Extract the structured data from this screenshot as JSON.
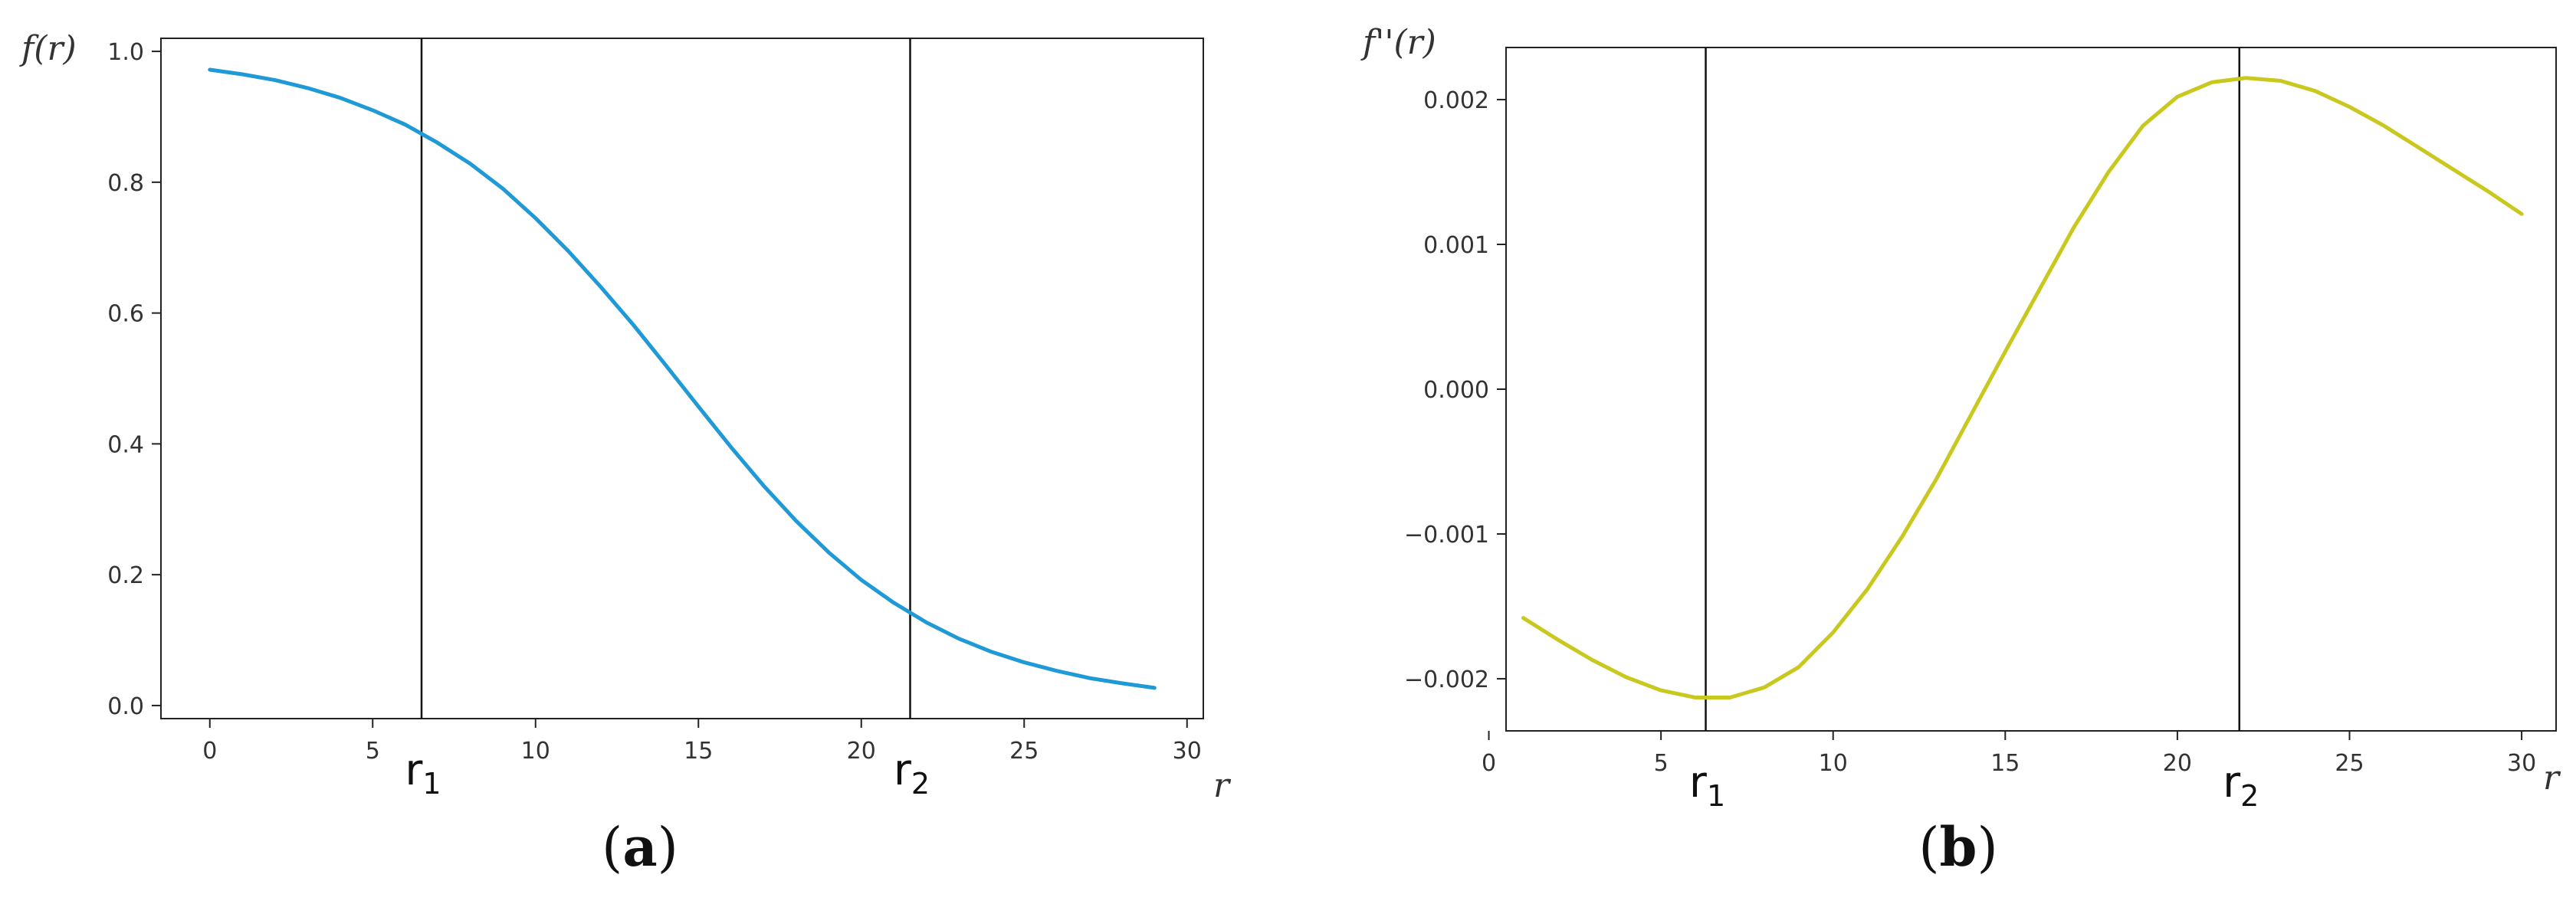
{
  "chart_data": [
    {
      "type": "line",
      "panel": "a",
      "xlabel": "r",
      "ylabel": "f(r)",
      "xlim": [
        -1.5,
        30.5
      ],
      "ylim": [
        -0.02,
        1.02
      ],
      "xticks": [
        0,
        5,
        10,
        15,
        20,
        25,
        30
      ],
      "yticks": [
        0.0,
        0.2,
        0.4,
        0.6,
        0.8,
        1.0
      ],
      "ytick_labels": [
        "0.0",
        "0.2",
        "0.4",
        "0.6",
        "0.8",
        "1.0"
      ],
      "grid": false,
      "series": [
        {
          "color": "#1f9ad6",
          "x": [
            0,
            1,
            2,
            3,
            4,
            5,
            6,
            7,
            8,
            9,
            10,
            11,
            12,
            13,
            14,
            15,
            16,
            17,
            18,
            19,
            20,
            21,
            22,
            23,
            24,
            25,
            26,
            27,
            28,
            29
          ],
          "y": [
            0.972,
            0.965,
            0.956,
            0.944,
            0.929,
            0.91,
            0.888,
            0.86,
            0.828,
            0.79,
            0.745,
            0.695,
            0.64,
            0.582,
            0.52,
            0.457,
            0.395,
            0.336,
            0.282,
            0.234,
            0.192,
            0.157,
            0.127,
            0.102,
            0.082,
            0.066,
            0.053,
            0.042,
            0.034,
            0.027
          ]
        }
      ],
      "vlines": [
        {
          "x": 6.5,
          "label": "r",
          "sub": "1"
        },
        {
          "x": 21.5,
          "label": "r",
          "sub": "2"
        }
      ],
      "panel_label": {
        "open": "(",
        "letter": "a",
        "close": ")"
      }
    },
    {
      "type": "line",
      "panel": "b",
      "xlabel": "r",
      "ylabel": "f''(r)",
      "xlim": [
        0.5,
        31.0
      ],
      "ylim": [
        -0.00236,
        0.00236
      ],
      "xticks": [
        0,
        5,
        10,
        15,
        20,
        25,
        30
      ],
      "yticks": [
        -0.002,
        -0.001,
        0.0,
        0.001,
        0.002
      ],
      "ytick_labels": [
        "−0.002",
        "−0.001",
        "0.000",
        "0.001",
        "0.002"
      ],
      "grid": false,
      "series": [
        {
          "color": "#c8c81e",
          "x": [
            1,
            2,
            3,
            4,
            5,
            6,
            7,
            8,
            9,
            10,
            11,
            12,
            13,
            14,
            15,
            16,
            17,
            18,
            19,
            20,
            21,
            22,
            23,
            24,
            25,
            26,
            27,
            28,
            29,
            30
          ],
          "y": [
            -0.00158,
            -0.00173,
            -0.00187,
            -0.00199,
            -0.00208,
            -0.00213,
            -0.00213,
            -0.00206,
            -0.00192,
            -0.00168,
            -0.00138,
            -0.00102,
            -0.00062,
            -0.00018,
            0.00026,
            0.00069,
            0.00112,
            0.0015,
            0.00182,
            0.00202,
            0.00212,
            0.00215,
            0.00213,
            0.00206,
            0.00195,
            0.00182,
            0.00167,
            0.00152,
            0.00137,
            0.00121
          ]
        }
      ],
      "vlines": [
        {
          "x": 6.3,
          "label": "r",
          "sub": "1"
        },
        {
          "x": 21.8,
          "label": "r",
          "sub": "2"
        }
      ],
      "panel_label": {
        "open": "(",
        "letter": "b",
        "close": ")"
      }
    }
  ]
}
